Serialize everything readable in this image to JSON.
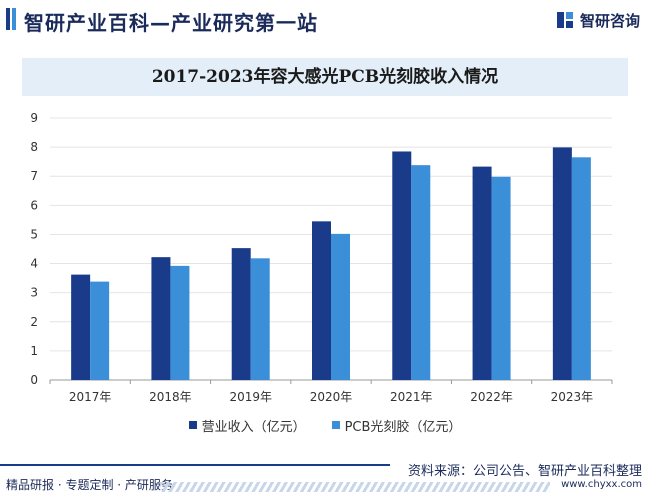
{
  "header": {
    "title": "智研产业百科—产业研究第一站",
    "logo_text": "智研咨询"
  },
  "footer": {
    "source": "资料来源：公司公告、智研产业百科整理",
    "tagline": "精品研报 · 专题定制 · 产研服务",
    "url": "www.chyxx.com"
  },
  "colors": {
    "series1": "#1a3a8a",
    "series2": "#3b8fd9",
    "title_bg": "#e3eef8"
  },
  "chart_data": {
    "type": "bar",
    "title": "2017-2023年容大感光PCB光刻胶收入情况",
    "categories": [
      "2017年",
      "2018年",
      "2019年",
      "2020年",
      "2021年",
      "2022年",
      "2023年"
    ],
    "series": [
      {
        "name": "营业收入（亿元）",
        "values": [
          3.62,
          4.22,
          4.53,
          5.45,
          7.85,
          7.33,
          7.99
        ]
      },
      {
        "name": "PCB光刻胶（亿元）",
        "values": [
          3.38,
          3.92,
          4.18,
          5.02,
          7.38,
          6.98,
          7.65
        ]
      }
    ],
    "yticks": [
      0,
      1,
      2,
      3,
      4,
      5,
      6,
      7,
      8,
      9
    ],
    "ylim": [
      0,
      9
    ],
    "grid": true,
    "legend": "bottom"
  }
}
